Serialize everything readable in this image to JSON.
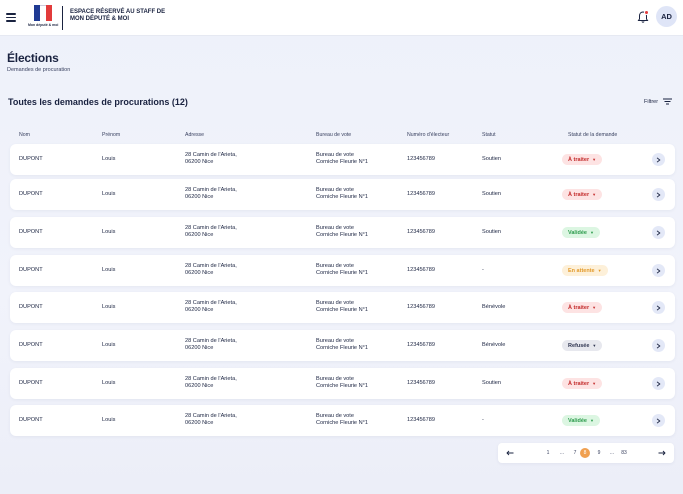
{
  "header": {
    "brand_line1": "ESPACE RÉSERVÉ AU STAFF DE",
    "brand_line2": "MON DÉPUTÉ & MOI",
    "logo_text": "Mon député & moi",
    "avatar_initials": "AD",
    "colors": {
      "flag_blue": "#1f3a93",
      "flag_white": "#ffffff",
      "flag_red": "#e23b3b",
      "notification": "#e23b3b"
    }
  },
  "page": {
    "title": "Élections",
    "subtitle": "Demandes de procuration",
    "section_title": "Toutes les demandes de procurations (12)",
    "filter_label": "Filtrer"
  },
  "table": {
    "columns": [
      "Nom",
      "Prénom",
      "Adresse",
      "Bureau de vote",
      "Numéro d'électeur",
      "Statut",
      "Statut de la demande"
    ],
    "rows": [
      {
        "nom": "DUPONT",
        "prenom": "Louis",
        "adresse1": "28 Camin de l'Arieta,",
        "adresse2": "06200 Nice",
        "bureau1": "Bureau de vote",
        "bureau2": "Corniche Fleurie N°1",
        "numero": "123456789",
        "statut": "Soutien",
        "demande": "À traiter",
        "tone": "red"
      },
      {
        "nom": "DUPONT",
        "prenom": "Louis",
        "adresse1": "28 Camin de l'Arieta,",
        "adresse2": "06200 Nice",
        "bureau1": "Bureau de vote",
        "bureau2": "Corniche Fleurie N°1",
        "numero": "123456789",
        "statut": "Soutien",
        "demande": "À traiter",
        "tone": "red"
      },
      {
        "nom": "DUPONT",
        "prenom": "Louis",
        "adresse1": "28 Camin de l'Arieta,",
        "adresse2": "06200 Nice",
        "bureau1": "Bureau de vote",
        "bureau2": "Corniche Fleurie N°1",
        "numero": "123456789",
        "statut": "Soutien",
        "demande": "Validée",
        "tone": "green"
      },
      {
        "nom": "DUPONT",
        "prenom": "Louis",
        "adresse1": "28 Camin de l'Arieta,",
        "adresse2": "06200 Nice",
        "bureau1": "Bureau de vote",
        "bureau2": "Corniche Fleurie N°1",
        "numero": "123456789",
        "statut": "-",
        "demande": "En attente",
        "tone": "orange"
      },
      {
        "nom": "DUPONT",
        "prenom": "Louis",
        "adresse1": "28 Camin de l'Arieta,",
        "adresse2": "06200 Nice",
        "bureau1": "Bureau de vote",
        "bureau2": "Corniche Fleurie N°1",
        "numero": "123456789",
        "statut": "Bénévole",
        "demande": "À traiter",
        "tone": "red"
      },
      {
        "nom": "DUPONT",
        "prenom": "Louis",
        "adresse1": "28 Camin de l'Arieta,",
        "adresse2": "06200 Nice",
        "bureau1": "Bureau de vote",
        "bureau2": "Corniche Fleurie N°1",
        "numero": "123456789",
        "statut": "Bénévole",
        "demande": "Refusée",
        "tone": "grey"
      },
      {
        "nom": "DUPONT",
        "prenom": "Louis",
        "adresse1": "28 Camin de l'Arieta,",
        "adresse2": "06200 Nice",
        "bureau1": "Bureau de vote",
        "bureau2": "Corniche Fleurie N°1",
        "numero": "123456789",
        "statut": "Soutien",
        "demande": "À traiter",
        "tone": "red"
      },
      {
        "nom": "DUPONT",
        "prenom": "Louis",
        "adresse1": "28 Camin de l'Arieta,",
        "adresse2": "06200 Nice",
        "bureau1": "Bureau de vote",
        "bureau2": "Corniche Fleurie N°1",
        "numero": "123456789",
        "statut": "-",
        "demande": "Validée",
        "tone": "green"
      }
    ]
  },
  "pagination": {
    "pages": [
      "1",
      "...",
      "7",
      "8",
      "9",
      "...",
      "83"
    ],
    "current": "8",
    "prev_icon": "arrow-left-icon",
    "next_icon": "arrow-right-icon",
    "accent": "#f0a050"
  }
}
